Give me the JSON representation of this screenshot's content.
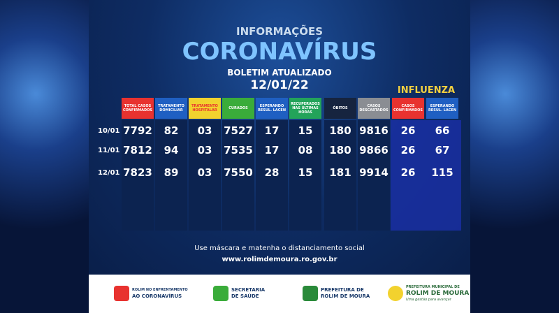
{
  "header": {
    "subtitle": "INFORMAÇÕES",
    "title": "CORONAVÍRUS",
    "bulletin": "BOLETIM ATUALIZADO",
    "date": "12/01/22",
    "influenza": "INFLUENZA"
  },
  "table": {
    "columns": [
      {
        "label": "TOTAL CASOS CONFIRMADOS",
        "color": "#e8322f"
      },
      {
        "label": "TRATAMENTO DOMICILIAR",
        "color": "#1f5fc2"
      },
      {
        "label": "TRATAMENTO HOSPITALAR",
        "color": "#f2d22e"
      },
      {
        "label": "CURADOS",
        "color": "#3aac3a"
      },
      {
        "label": "ESPERANDO RESUL. LACEN",
        "color": "#1f5fc2"
      },
      {
        "label": "RECUPERADOS NAS ÚLTIMAS HORAS",
        "color": "#23a35a"
      },
      {
        "label": "ÓBITOS",
        "color": "#16243f"
      },
      {
        "label": "CASOS DESCARTADOS",
        "color": "#8a8d93"
      },
      {
        "label": "CASOS CONFIRMADOS",
        "color": "#e8322f"
      },
      {
        "label": "ESPERANDO RESUL. LACEN",
        "color": "#1f5fc2"
      }
    ],
    "rows": [
      {
        "date": "10/01",
        "cells": [
          "7792",
          "82",
          "03",
          "7527",
          "17",
          "15",
          "180",
          "9816",
          "26",
          "66"
        ]
      },
      {
        "date": "11/01",
        "cells": [
          "7812",
          "94",
          "03",
          "7535",
          "17",
          "08",
          "180",
          "9866",
          "26",
          "67"
        ]
      },
      {
        "date": "12/01",
        "cells": [
          "7823",
          "89",
          "03",
          "7550",
          "28",
          "15",
          "181",
          "9914",
          "26",
          "115"
        ]
      }
    ]
  },
  "footer": {
    "message": "Use máscara e matenha o distanciamento social",
    "website": "www.rolimdemoura.ro.gov.br",
    "logos": [
      {
        "line1": "ROLIM NO ENFRENTAMENTO",
        "line2": "AO CORONAVÍRUS"
      },
      {
        "line1": "SECRETARIA",
        "line2": "DE SAÚDE"
      },
      {
        "line1": "PREFEITURA DE",
        "line2": "ROLIM DE MOURA"
      },
      {
        "line1": "PREFEITURA MUNICIPAL DE",
        "line2": "ROLIM DE MOURA",
        "line3": "Uma gestão para avançar"
      }
    ]
  }
}
